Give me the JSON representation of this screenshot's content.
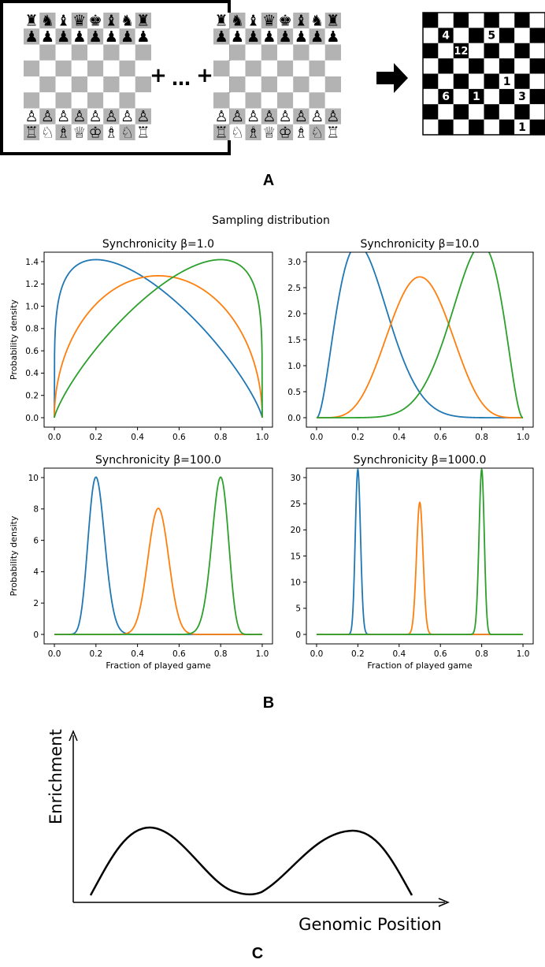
{
  "panel_labels": {
    "a": "A",
    "b": "B",
    "c": "C"
  },
  "panel_a": {
    "plus": "+",
    "ellipsis": "…",
    "board_numbers": [
      {
        "text": "4",
        "row": 1,
        "col": 1
      },
      {
        "text": "5",
        "row": 1,
        "col": 4
      },
      {
        "text": "12",
        "row": 2,
        "col": 2
      },
      {
        "text": "1",
        "row": 4,
        "col": 5
      },
      {
        "text": "6",
        "row": 5,
        "col": 1
      },
      {
        "text": "1",
        "row": 5,
        "col": 3
      },
      {
        "text": "3",
        "row": 5,
        "col": 6
      },
      {
        "text": "1",
        "row": 7,
        "col": 6
      }
    ],
    "piece_rows": {
      "black_back": [
        "♜",
        "♞",
        "♝",
        "♛",
        "♚",
        "♝",
        "♞",
        "♜"
      ],
      "black_pawns": [
        "♟",
        "♟",
        "♟",
        "♟",
        "♟",
        "♟",
        "♟",
        "♟"
      ],
      "white_pawns": [
        "♙",
        "♙",
        "♙",
        "♙",
        "♙",
        "♙",
        "♙",
        "♙"
      ],
      "white_back": [
        "♖",
        "♘",
        "♗",
        "♕",
        "♔",
        "♗",
        "♘",
        "♖"
      ]
    }
  },
  "chart_data": [
    {
      "type": "line",
      "suptitle": "Sampling distribution",
      "title": "Synchronicity β=1.0",
      "beta": 1.0,
      "ylabel": "Probability density",
      "xlabel": "",
      "xlim": [
        0,
        1
      ],
      "ylim": [
        0,
        1.4
      ],
      "xticks": [
        "0.0",
        "0.2",
        "0.4",
        "0.6",
        "0.8",
        "1.0"
      ],
      "yticks": [
        "0.0",
        "0.2",
        "0.4",
        "0.6",
        "0.8",
        "1.0",
        "1.2",
        "1.4"
      ],
      "modes": [
        0.2,
        0.5,
        0.8
      ],
      "colors": [
        "#1f77b4",
        "#ff7f0e",
        "#2ca02c"
      ]
    },
    {
      "type": "line",
      "title": "Synchronicity β=10.0",
      "beta": 10.0,
      "ylabel": "",
      "xlabel": "",
      "xlim": [
        0,
        1
      ],
      "ylim": [
        0,
        3.0
      ],
      "xticks": [
        "0.0",
        "0.2",
        "0.4",
        "0.6",
        "0.8",
        "1.0"
      ],
      "yticks": [
        "0.0",
        "0.5",
        "1.0",
        "1.5",
        "2.0",
        "2.5",
        "3.0"
      ],
      "modes": [
        0.2,
        0.5,
        0.8
      ],
      "colors": [
        "#1f77b4",
        "#ff7f0e",
        "#2ca02c"
      ]
    },
    {
      "type": "line",
      "title": "Synchronicity β=100.0",
      "beta": 100.0,
      "ylabel": "Probability density",
      "xlabel": "Fraction of played game",
      "xlim": [
        0,
        1
      ],
      "ylim": [
        0,
        10
      ],
      "xticks": [
        "0.0",
        "0.2",
        "0.4",
        "0.6",
        "0.8",
        "1.0"
      ],
      "yticks": [
        "0",
        "2",
        "4",
        "6",
        "8",
        "10"
      ],
      "modes": [
        0.2,
        0.5,
        0.8
      ],
      "colors": [
        "#1f77b4",
        "#ff7f0e",
        "#2ca02c"
      ]
    },
    {
      "type": "line",
      "title": "Synchronicity β=1000.0",
      "beta": 1000.0,
      "ylabel": "",
      "xlabel": "Fraction of played game",
      "xlim": [
        0,
        1
      ],
      "ylim": [
        0,
        30
      ],
      "xticks": [
        "0.0",
        "0.2",
        "0.4",
        "0.6",
        "0.8",
        "1.0"
      ],
      "yticks": [
        "0",
        "5",
        "10",
        "15",
        "20",
        "25",
        "30"
      ],
      "modes": [
        0.2,
        0.5,
        0.8
      ],
      "colors": [
        "#1f77b4",
        "#ff7f0e",
        "#2ca02c"
      ]
    },
    {
      "type": "line",
      "title": "",
      "xlabel": "Genomic Position",
      "ylabel": "Enrichment",
      "shape": "two peaks separated by a valley"
    }
  ]
}
